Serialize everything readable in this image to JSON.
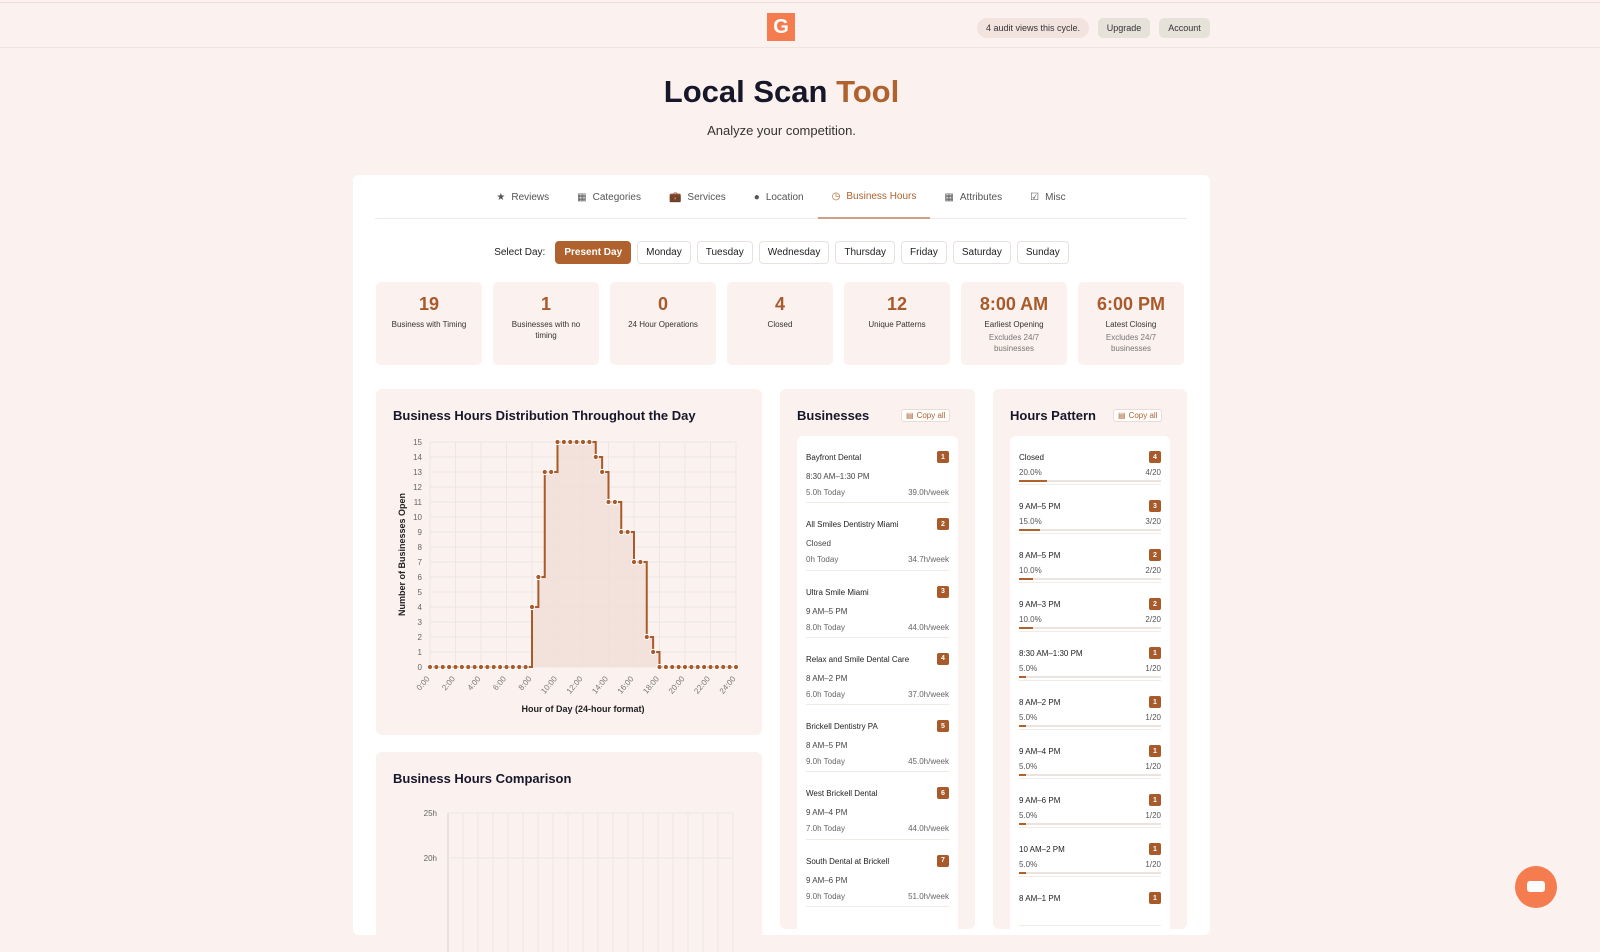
{
  "header": {
    "logo": "G",
    "audit_views": "4 audit views this cycle.",
    "upgrade": "Upgrade",
    "account": "Account"
  },
  "hero": {
    "title_main": "Local Scan",
    "title_accent": "Tool",
    "subtitle": "Analyze your competition."
  },
  "tabs": [
    {
      "label": "Reviews",
      "icon": "star-icon"
    },
    {
      "label": "Categories",
      "icon": "categories-icon"
    },
    {
      "label": "Services",
      "icon": "briefcase-icon"
    },
    {
      "label": "Location",
      "icon": "pin-icon"
    },
    {
      "label": "Business Hours",
      "icon": "clock-icon",
      "active": true
    },
    {
      "label": "Attributes",
      "icon": "attributes-icon"
    },
    {
      "label": "Misc",
      "icon": "check-shield-icon"
    }
  ],
  "day_select": {
    "label": "Select Day:",
    "days": [
      "Present Day",
      "Monday",
      "Tuesday",
      "Wednesday",
      "Thursday",
      "Friday",
      "Saturday",
      "Sunday"
    ],
    "selected": "Present Day"
  },
  "stats": [
    {
      "value": "19",
      "label": "Business with Timing"
    },
    {
      "value": "1",
      "label": "Businesses with no timing"
    },
    {
      "value": "0",
      "label": "24 Hour Operations"
    },
    {
      "value": "4",
      "label": "Closed"
    },
    {
      "value": "12",
      "label": "Unique Patterns"
    },
    {
      "value": "8:00 AM",
      "label": "Earliest Opening",
      "note": "Excludes 24/7 businesses"
    },
    {
      "value": "6:00 PM",
      "label": "Latest Closing",
      "note": "Excludes 24/7 businesses"
    }
  ],
  "colors": {
    "accent": "#a85a2a",
    "logo": "#f47c4f",
    "background": "#fbf1ef"
  },
  "chart_data": [
    {
      "type": "area",
      "title": "Business Hours Distribution Throughout the Day",
      "xlabel": "Hour of Day (24-hour format)",
      "ylabel": "Number of Businesses Open",
      "x": [
        "0:00",
        "0:30",
        "1:00",
        "1:30",
        "2:00",
        "2:30",
        "3:00",
        "3:30",
        "4:00",
        "4:30",
        "5:00",
        "5:30",
        "6:00",
        "6:30",
        "7:00",
        "7:30",
        "8:00",
        "8:30",
        "9:00",
        "9:30",
        "10:00",
        "10:30",
        "11:00",
        "11:30",
        "12:00",
        "12:30",
        "13:00",
        "13:30",
        "14:00",
        "14:30",
        "15:00",
        "15:30",
        "16:00",
        "16:30",
        "17:00",
        "17:30",
        "18:00",
        "18:30",
        "19:00",
        "19:30",
        "20:00",
        "20:30",
        "21:00",
        "21:30",
        "22:00",
        "22:30",
        "23:00",
        "23:30",
        "24:00"
      ],
      "values": [
        0,
        0,
        0,
        0,
        0,
        0,
        0,
        0,
        0,
        0,
        0,
        0,
        0,
        0,
        0,
        0,
        4,
        6,
        13,
        13,
        15,
        15,
        15,
        15,
        15,
        15,
        14,
        13,
        11,
        11,
        9,
        9,
        7,
        7,
        2,
        1,
        0,
        0,
        0,
        0,
        0,
        0,
        0,
        0,
        0,
        0,
        0,
        0,
        0
      ],
      "xticks": [
        "0:00",
        "2:00",
        "4:00",
        "6:00",
        "8:00",
        "10:00",
        "12:00",
        "14:00",
        "16:00",
        "18:00",
        "20:00",
        "22:00",
        "24:00"
      ],
      "yticks": [
        "0",
        "1",
        "2",
        "3",
        "4",
        "5",
        "6",
        "7",
        "8",
        "9",
        "10",
        "11",
        "12",
        "13",
        "14",
        "15"
      ],
      "ylim": [
        0,
        15
      ],
      "grid": true,
      "step": true
    },
    {
      "type": "bar",
      "title": "Business Hours Comparison",
      "yticks": [
        "25h",
        "20h"
      ],
      "grid": true
    }
  ],
  "businesses": {
    "title": "Businesses",
    "copy": "Copy all",
    "items": [
      {
        "rank": "1",
        "name": "Bayfront Dental",
        "hours": "8:30 AM–1:30 PM",
        "today": "5.0h Today",
        "week": "39.0h/week"
      },
      {
        "rank": "2",
        "name": "All Smiles Dentistry Miami",
        "hours": "Closed",
        "today": "0h Today",
        "week": "34.7h/week"
      },
      {
        "rank": "3",
        "name": "Ultra Smile Miami",
        "hours": "9 AM–5 PM",
        "today": "8.0h Today",
        "week": "44.0h/week"
      },
      {
        "rank": "4",
        "name": "Relax and Smile Dental Care",
        "hours": "8 AM–2 PM",
        "today": "6.0h Today",
        "week": "37.0h/week"
      },
      {
        "rank": "5",
        "name": "Brickell Dentistry PA",
        "hours": "8 AM–5 PM",
        "today": "9.0h Today",
        "week": "45.0h/week"
      },
      {
        "rank": "6",
        "name": "West Brickell Dental",
        "hours": "9 AM–4 PM",
        "today": "7.0h Today",
        "week": "44.0h/week"
      },
      {
        "rank": "7",
        "name": "South Dental at Brickell",
        "hours": "9 AM–6 PM",
        "today": "9.0h Today",
        "week": "51.0h/week"
      }
    ]
  },
  "patterns": {
    "title": "Hours Pattern",
    "copy": "Copy all",
    "items": [
      {
        "name": "Closed",
        "count": "4",
        "percent": "20.0%",
        "ratio": "4/20",
        "fraction": 0.2
      },
      {
        "name": "9 AM–5 PM",
        "count": "3",
        "percent": "15.0%",
        "ratio": "3/20",
        "fraction": 0.15
      },
      {
        "name": "8 AM–5 PM",
        "count": "2",
        "percent": "10.0%",
        "ratio": "2/20",
        "fraction": 0.1
      },
      {
        "name": "9 AM–3 PM",
        "count": "2",
        "percent": "10.0%",
        "ratio": "2/20",
        "fraction": 0.1
      },
      {
        "name": "8:30 AM–1:30 PM",
        "count": "1",
        "percent": "5.0%",
        "ratio": "1/20",
        "fraction": 0.05
      },
      {
        "name": "8 AM–2 PM",
        "count": "1",
        "percent": "5.0%",
        "ratio": "1/20",
        "fraction": 0.05
      },
      {
        "name": "9 AM–4 PM",
        "count": "1",
        "percent": "5.0%",
        "ratio": "1/20",
        "fraction": 0.05
      },
      {
        "name": "9 AM–6 PM",
        "count": "1",
        "percent": "5.0%",
        "ratio": "1/20",
        "fraction": 0.05
      },
      {
        "name": "10 AM–2 PM",
        "count": "1",
        "percent": "5.0%",
        "ratio": "1/20",
        "fraction": 0.05
      },
      {
        "name": "8 AM–1 PM",
        "count": "1"
      }
    ]
  }
}
